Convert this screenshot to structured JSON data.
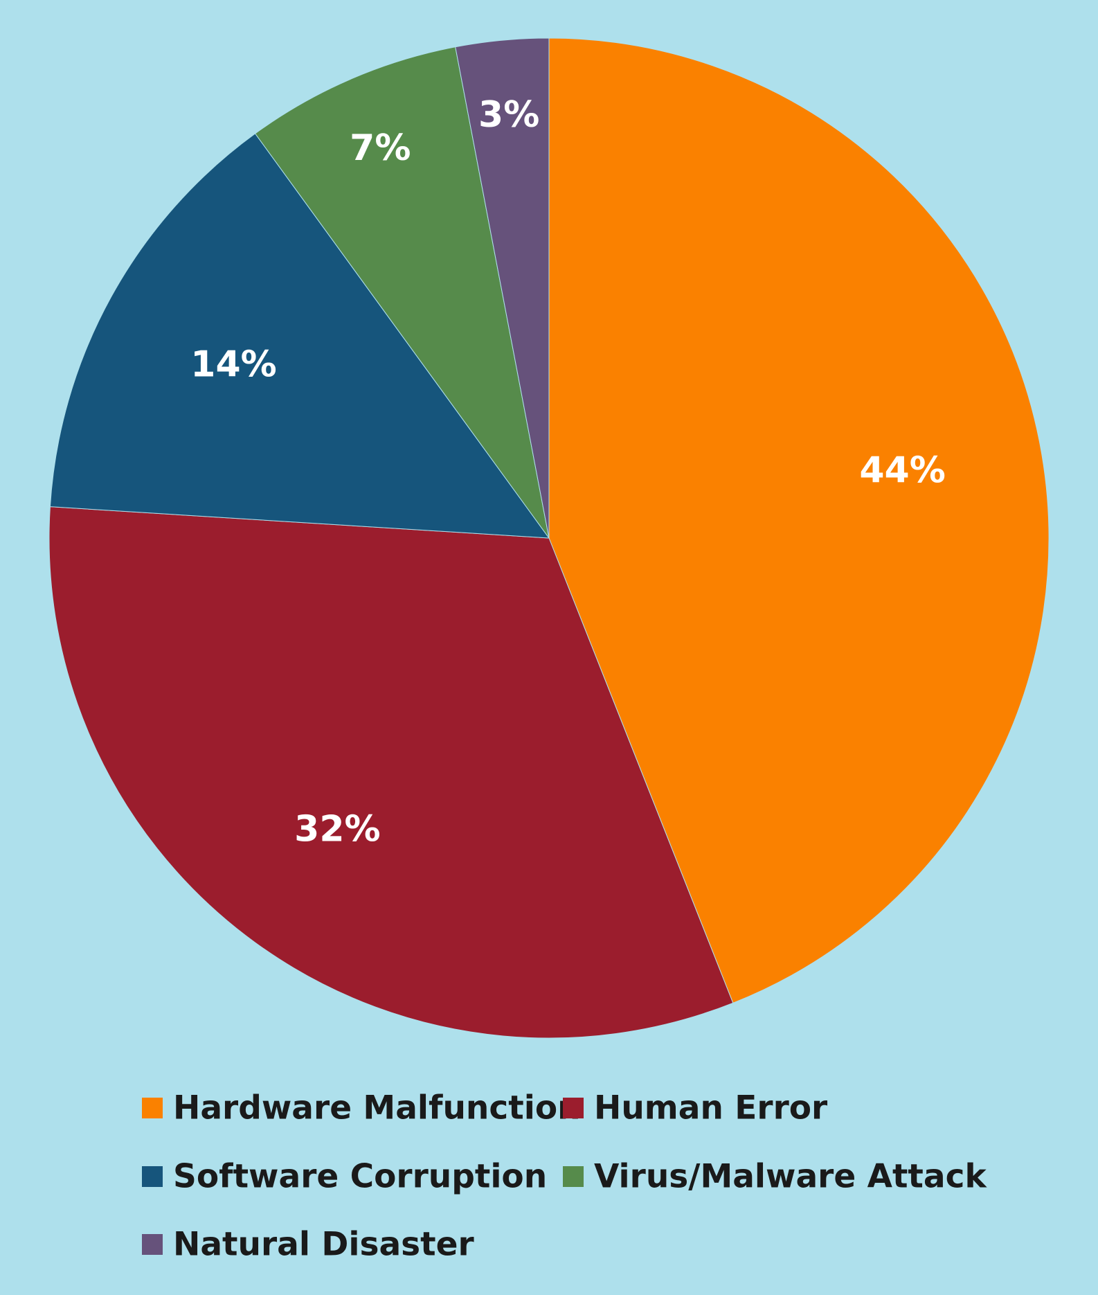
{
  "chart_data": {
    "type": "pie",
    "title": "",
    "categories": [
      "Hardware Malfunction",
      "Human Error",
      "Software Corruption",
      "Virus/Malware Attack",
      "Natural Disaster"
    ],
    "values": [
      44,
      32,
      14,
      7,
      3
    ],
    "labels": [
      "44%",
      "32%",
      "14%",
      "7%",
      "3%"
    ],
    "colors": [
      "#fa8100",
      "#9b1d2d",
      "#16557c",
      "#568b4b",
      "#66527b"
    ],
    "start_angle": "12 o'clock",
    "direction": "clockwise",
    "legend_placement": "bottom"
  }
}
